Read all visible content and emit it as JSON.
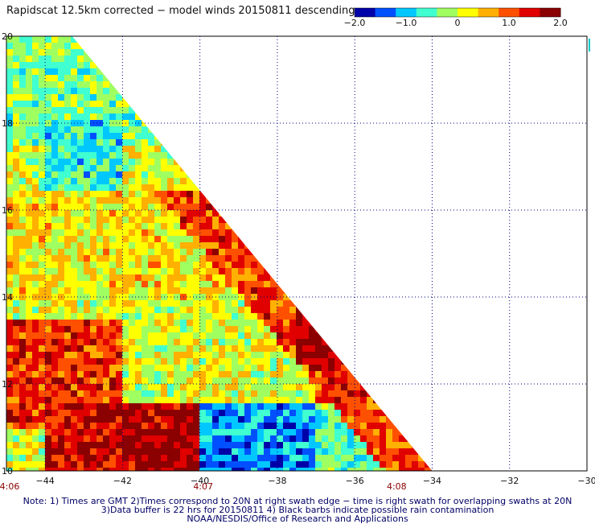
{
  "title": "Rapidscat 12.5km corrected − model winds 20150811 descending",
  "colorbar": {
    "ticks": [
      "−2.0",
      "−1.0",
      "0",
      "1.0",
      "2.0"
    ],
    "range": [
      -2.0,
      2.0
    ],
    "colors": [
      "#0000a8",
      "#0050ff",
      "#00c8ff",
      "#40ffd0",
      "#a0ff60",
      "#ffff00",
      "#ffb000",
      "#ff5000",
      "#e00000",
      "#8b0000"
    ]
  },
  "footer": {
    "line1": "Note: 1) Times are GMT 2)Times correspond to 20N at right swath edge − time is right swath for overlapping swaths at 20N",
    "line2": "3)Data buffer is 22 hrs for 20150811 4) Black barbs indicate possible rain contamination",
    "line3": "NOAA/NESDIS/Office of Research and Applications"
  },
  "chart_data": {
    "type": "heatmap",
    "title": "Rapidscat 12.5km corrected − model winds 20150811 descending",
    "x_ticks": [
      "−44",
      "−42",
      "−40",
      "−38",
      "−36",
      "−34",
      "−32",
      "−30"
    ],
    "x_tick_values": [
      -44,
      -42,
      -40,
      -38,
      -36,
      -34,
      -32,
      -30
    ],
    "y_ticks": [
      "20",
      "18",
      "16",
      "14",
      "12",
      "10"
    ],
    "y_tick_values": [
      20,
      18,
      16,
      14,
      12,
      10
    ],
    "xlim": [
      -45,
      -30
    ],
    "ylim": [
      10,
      20
    ],
    "time_labels": [
      {
        "lon": -45,
        "text": "4:06"
      },
      {
        "lon": -40,
        "text": "4:07"
      },
      {
        "lon": -35,
        "text": "4:08"
      }
    ],
    "swath_edge": [
      [
        -45,
        20
      ],
      [
        -43.3,
        20
      ],
      [
        -34,
        10
      ],
      [
        -45,
        10
      ]
    ],
    "regions": [
      {
        "lon": [
          -45,
          -41
        ],
        "lat": [
          17.5,
          20
        ],
        "value": -0.3
      },
      {
        "lon": [
          -44,
          -42
        ],
        "lat": [
          16.5,
          18
        ],
        "value": -0.7
      },
      {
        "lon": [
          -41,
          -39.5
        ],
        "lat": [
          17.5,
          18.5
        ],
        "value": 0.9
      },
      {
        "lon": [
          -45,
          -39
        ],
        "lat": [
          14,
          16.5
        ],
        "value": 0.3
      },
      {
        "lon": [
          -39,
          -37.5
        ],
        "lat": [
          14,
          16.5
        ],
        "value": 0.8
      },
      {
        "lon": [
          -37.5,
          -36
        ],
        "lat": [
          13,
          15
        ],
        "value": 1.6
      },
      {
        "lon": [
          -37.5,
          -35.5
        ],
        "lat": [
          12.5,
          14
        ],
        "value": 1.8
      },
      {
        "lon": [
          -45,
          -42
        ],
        "lat": [
          11,
          13.5
        ],
        "value": 1.2
      },
      {
        "lon": [
          -42,
          -40
        ],
        "lat": [
          10,
          11.5
        ],
        "value": 1.7
      },
      {
        "lon": [
          -44,
          -42
        ],
        "lat": [
          10,
          11.5
        ],
        "value": 1.5
      },
      {
        "lon": [
          -40,
          -37
        ],
        "lat": [
          10,
          11.5
        ],
        "value": -1.2
      },
      {
        "lon": [
          -37,
          -35
        ],
        "lat": [
          10,
          11.5
        ],
        "value": -0.5
      },
      {
        "lon": [
          -37,
          -35
        ],
        "lat": [
          11.5,
          12.5
        ],
        "value": 1.3
      }
    ]
  }
}
